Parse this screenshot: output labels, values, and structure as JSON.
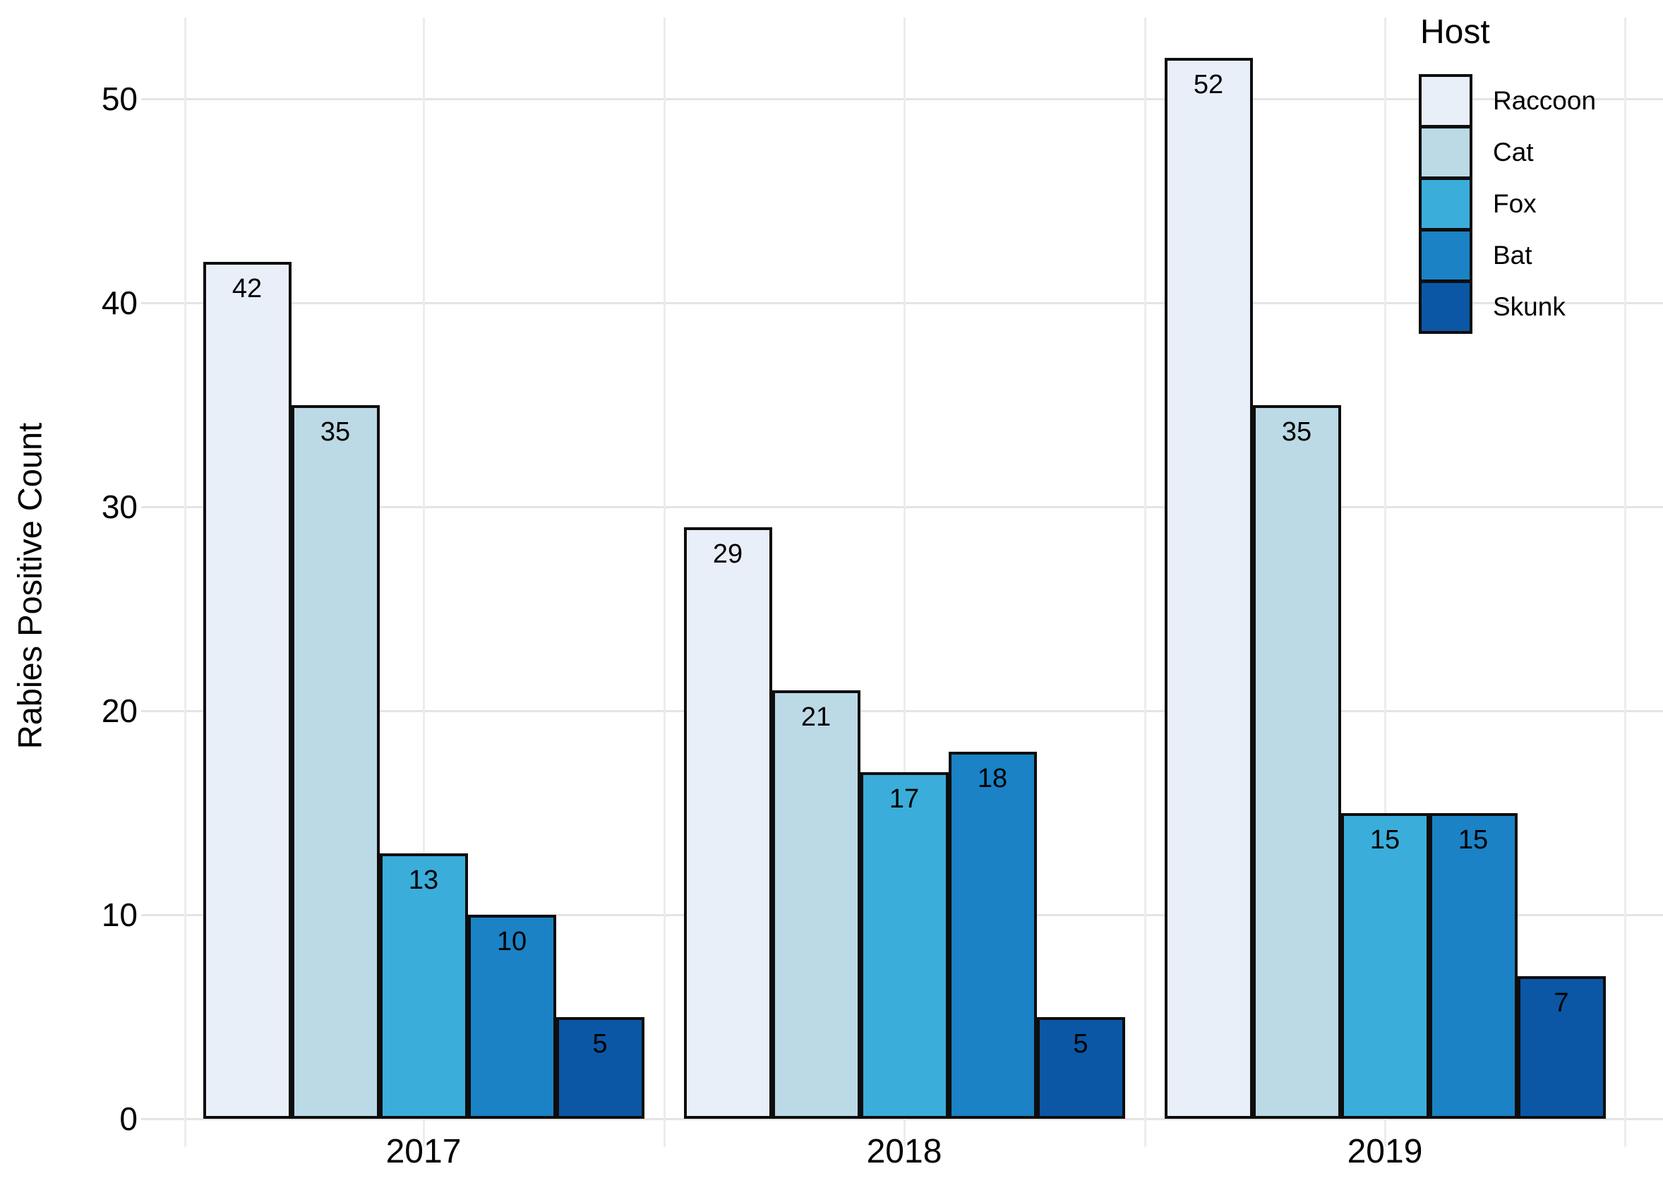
{
  "chart_data": {
    "type": "bar",
    "title": "",
    "xlabel": "",
    "ylabel": "Rabies Positive Count",
    "categories": [
      "2017",
      "2018",
      "2019"
    ],
    "series": [
      {
        "name": "Raccoon",
        "color": "#e9eff9",
        "values": [
          42,
          29,
          52
        ]
      },
      {
        "name": "Cat",
        "color": "#bcd9e6",
        "values": [
          35,
          21,
          35
        ]
      },
      {
        "name": "Fox",
        "color": "#3badda",
        "values": [
          13,
          17,
          15
        ]
      },
      {
        "name": "Bat",
        "color": "#1a82c5",
        "values": [
          10,
          18,
          15
        ]
      },
      {
        "name": "Skunk",
        "color": "#0b57a5",
        "values": [
          5,
          5,
          7
        ]
      }
    ],
    "yticks": [
      0,
      10,
      20,
      30,
      40,
      50
    ],
    "ylim": [
      0,
      54
    ],
    "grid": true,
    "show_values": true,
    "bar_border_color": "#0d0d0d",
    "hgrid_color": "#e4e4e4",
    "vgrid_color": "#ececec",
    "legend": {
      "title": "Host",
      "position": "top-right",
      "entries": [
        "Raccoon",
        "Cat",
        "Fox",
        "Bat",
        "Skunk"
      ]
    }
  }
}
